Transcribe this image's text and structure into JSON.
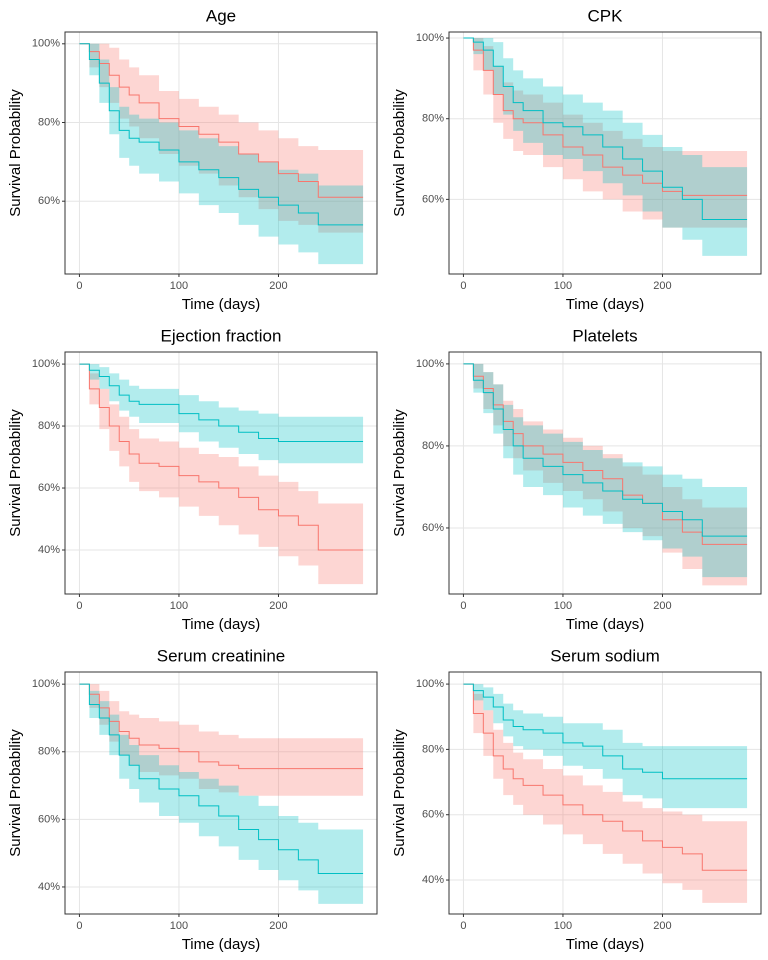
{
  "chart_data": [
    {
      "type": "line",
      "step": true,
      "title": "Age",
      "x_label": "Time (days)",
      "y_label": "Survival Probability",
      "x": [
        0,
        10,
        20,
        30,
        40,
        50,
        60,
        80,
        100,
        120,
        140,
        160,
        180,
        200,
        220,
        240,
        260,
        285
      ],
      "xlim": [
        -14.5,
        299
      ],
      "xticks": [
        0,
        100,
        200
      ],
      "ylim": [
        41.5,
        103
      ],
      "yticks": [
        {
          "value": 60,
          "label": "60%"
        },
        {
          "value": 80,
          "label": "80%"
        },
        {
          "value": 100,
          "label": "100%"
        }
      ],
      "grid": true,
      "series": [
        {
          "color": "#F8766D",
          "values": [
            100,
            98,
            95,
            92,
            89,
            87,
            85,
            81,
            79,
            77,
            75,
            72,
            70,
            67,
            65,
            61,
            61,
            61
          ],
          "lower": [
            100,
            94,
            89,
            85,
            81,
            79,
            76,
            72,
            69,
            67,
            64,
            61,
            58,
            55,
            54,
            52,
            52,
            52
          ],
          "upper": [
            100,
            100,
            100,
            99,
            96,
            94,
            92,
            88,
            86,
            84,
            82,
            80,
            78,
            76,
            74,
            73,
            73,
            73
          ]
        },
        {
          "color": "#00BFC4",
          "values": [
            100,
            96,
            90,
            83,
            78,
            76,
            75,
            73,
            70,
            68,
            66,
            63,
            61,
            59,
            57,
            54,
            54,
            54
          ],
          "lower": [
            100,
            92,
            85,
            77,
            71,
            69,
            67,
            65,
            62,
            59,
            57,
            54,
            51,
            49,
            47,
            44,
            44,
            44
          ],
          "upper": [
            100,
            100,
            96,
            89,
            84,
            82,
            81,
            80,
            78,
            76,
            74,
            72,
            70,
            68,
            67,
            64,
            64,
            64
          ]
        }
      ]
    },
    {
      "type": "line",
      "step": true,
      "title": "CPK",
      "x_label": "Time (days)",
      "y_label": "Survival Probability",
      "x": [
        0,
        10,
        20,
        30,
        40,
        50,
        60,
        80,
        100,
        120,
        140,
        160,
        180,
        200,
        220,
        240,
        260,
        285
      ],
      "xlim": [
        -14.5,
        299
      ],
      "xticks": [
        0,
        100,
        200
      ],
      "ylim": [
        41.5,
        101.5
      ],
      "yticks": [
        {
          "value": 60,
          "label": "60%"
        },
        {
          "value": 80,
          "label": "80%"
        },
        {
          "value": 100,
          "label": "100%"
        }
      ],
      "grid": true,
      "series": [
        {
          "color": "#F8766D",
          "values": [
            100,
            97,
            92,
            86,
            82,
            80,
            79,
            76,
            73,
            71,
            68,
            66,
            64,
            62,
            61,
            61,
            61,
            61
          ],
          "lower": [
            100,
            92,
            86,
            79,
            75,
            72,
            71,
            68,
            65,
            62,
            60,
            57,
            55,
            53,
            53,
            53,
            53,
            53
          ],
          "upper": [
            100,
            100,
            98,
            93,
            89,
            87,
            86,
            84,
            81,
            79,
            77,
            75,
            73,
            72,
            72,
            72,
            72,
            72
          ]
        },
        {
          "color": "#00BFC4",
          "values": [
            100,
            99,
            97,
            93,
            88,
            84,
            82,
            79,
            78,
            76,
            73,
            70,
            67,
            63,
            60,
            55,
            55,
            55
          ],
          "lower": [
            100,
            96,
            92,
            86,
            81,
            77,
            74,
            71,
            70,
            67,
            64,
            61,
            57,
            53,
            50,
            46,
            46,
            46
          ],
          "upper": [
            100,
            100,
            100,
            99,
            95,
            92,
            90,
            88,
            86,
            84,
            82,
            79,
            76,
            73,
            71,
            68,
            68,
            68
          ]
        }
      ]
    },
    {
      "type": "line",
      "step": true,
      "title": "Ejection fraction",
      "x_label": "Time (days)",
      "y_label": "Survival Probability",
      "x": [
        0,
        10,
        20,
        30,
        40,
        50,
        60,
        80,
        100,
        120,
        140,
        160,
        180,
        200,
        220,
        240,
        260,
        285
      ],
      "xlim": [
        -14.5,
        299
      ],
      "xticks": [
        0,
        100,
        200
      ],
      "ylim": [
        25.8,
        103.9
      ],
      "yticks": [
        {
          "value": 40,
          "label": "40%"
        },
        {
          "value": 60,
          "label": "60%"
        },
        {
          "value": 80,
          "label": "80%"
        },
        {
          "value": 100,
          "label": "100%"
        }
      ],
      "grid": true,
      "series": [
        {
          "color": "#F8766D",
          "values": [
            100,
            92,
            86,
            80,
            75,
            71,
            68,
            67,
            64,
            62,
            60,
            57,
            53,
            51,
            48,
            40,
            40,
            40
          ],
          "lower": [
            100,
            87,
            79,
            72,
            67,
            62,
            59,
            57,
            54,
            51,
            48,
            45,
            41,
            38,
            35,
            29,
            29,
            29
          ],
          "upper": [
            100,
            97,
            92,
            87,
            83,
            79,
            76,
            75,
            73,
            71,
            70,
            67,
            64,
            62,
            59,
            55,
            55,
            55
          ]
        },
        {
          "color": "#00BFC4",
          "values": [
            100,
            98,
            96,
            93,
            90,
            88,
            87,
            87,
            84,
            82,
            80,
            78,
            76,
            75,
            75,
            75,
            75,
            75
          ],
          "lower": [
            100,
            95,
            92,
            88,
            85,
            83,
            81,
            81,
            78,
            75,
            73,
            71,
            69,
            68,
            68,
            68,
            68,
            68
          ],
          "upper": [
            100,
            100,
            99,
            97,
            95,
            93,
            92,
            92,
            90,
            88,
            86,
            85,
            84,
            83,
            83,
            83,
            83,
            83
          ]
        }
      ]
    },
    {
      "type": "line",
      "step": true,
      "title": "Platelets",
      "x_label": "Time (days)",
      "y_label": "Survival Probability",
      "x": [
        0,
        10,
        20,
        30,
        40,
        50,
        60,
        80,
        100,
        120,
        140,
        160,
        180,
        200,
        220,
        240,
        260,
        285
      ],
      "xlim": [
        -14.5,
        299
      ],
      "xticks": [
        0,
        100,
        200
      ],
      "ylim": [
        43.9,
        102.9
      ],
      "yticks": [
        {
          "value": 60,
          "label": "60%"
        },
        {
          "value": 80,
          "label": "80%"
        },
        {
          "value": 100,
          "label": "100%"
        }
      ],
      "grid": true,
      "series": [
        {
          "color": "#F8766D",
          "values": [
            100,
            97,
            94,
            90,
            86,
            83,
            80,
            78,
            76,
            74,
            72,
            68,
            66,
            62,
            59,
            56,
            56,
            56
          ],
          "lower": [
            100,
            94,
            89,
            85,
            80,
            77,
            74,
            71,
            69,
            67,
            64,
            60,
            58,
            54,
            50,
            46,
            46,
            46
          ],
          "upper": [
            100,
            100,
            98,
            95,
            91,
            89,
            86,
            84,
            82,
            80,
            78,
            75,
            73,
            70,
            67,
            65,
            65,
            65
          ]
        },
        {
          "color": "#00BFC4",
          "values": [
            100,
            96,
            93,
            89,
            84,
            80,
            77,
            75,
            73,
            71,
            69,
            67,
            66,
            64,
            62,
            58,
            58,
            58
          ],
          "lower": [
            100,
            93,
            88,
            83,
            77,
            73,
            70,
            68,
            65,
            63,
            61,
            59,
            57,
            55,
            53,
            48,
            48,
            48
          ],
          "upper": [
            100,
            100,
            98,
            95,
            90,
            87,
            85,
            83,
            81,
            79,
            77,
            76,
            75,
            73,
            72,
            70,
            70,
            70
          ]
        }
      ]
    },
    {
      "type": "line",
      "step": true,
      "title": "Serum creatinine",
      "x_label": "Time (days)",
      "y_label": "Survival Probability",
      "x": [
        0,
        10,
        20,
        30,
        40,
        50,
        60,
        80,
        100,
        120,
        140,
        160,
        180,
        200,
        220,
        240,
        260,
        285
      ],
      "xlim": [
        -14.5,
        299
      ],
      "xticks": [
        0,
        100,
        200
      ],
      "ylim": [
        32,
        103.6
      ],
      "yticks": [
        {
          "value": 40,
          "label": "40%"
        },
        {
          "value": 60,
          "label": "60%"
        },
        {
          "value": 80,
          "label": "80%"
        },
        {
          "value": 100,
          "label": "100%"
        }
      ],
      "grid": true,
      "series": [
        {
          "color": "#F8766D",
          "values": [
            100,
            97,
            93,
            89,
            86,
            84,
            82,
            81,
            80,
            77,
            76,
            75,
            75,
            75,
            75,
            75,
            75,
            75
          ],
          "lower": [
            100,
            93,
            88,
            83,
            79,
            76,
            74,
            73,
            72,
            69,
            68,
            67,
            67,
            67,
            67,
            67,
            67,
            67
          ],
          "upper": [
            100,
            100,
            98,
            95,
            92,
            91,
            90,
            89,
            88,
            86,
            85,
            84,
            84,
            84,
            84,
            84,
            84,
            84
          ]
        },
        {
          "color": "#00BFC4",
          "values": [
            100,
            94,
            90,
            85,
            79,
            76,
            72,
            69,
            67,
            64,
            61,
            57,
            54,
            51,
            48,
            44,
            44,
            44
          ],
          "lower": [
            100,
            90,
            85,
            79,
            72,
            69,
            65,
            61,
            59,
            55,
            52,
            48,
            45,
            42,
            39,
            35,
            35,
            35
          ],
          "upper": [
            100,
            98,
            95,
            91,
            85,
            82,
            79,
            76,
            74,
            72,
            70,
            67,
            64,
            61,
            59,
            57,
            57,
            57
          ]
        }
      ]
    },
    {
      "type": "line",
      "step": true,
      "title": "Serum sodium",
      "x_label": "Time (days)",
      "y_label": "Survival Probability",
      "x": [
        0,
        10,
        20,
        30,
        40,
        50,
        60,
        80,
        100,
        120,
        140,
        160,
        180,
        200,
        220,
        240,
        260,
        285
      ],
      "xlim": [
        -14.5,
        299
      ],
      "xticks": [
        0,
        100,
        200
      ],
      "ylim": [
        29.6,
        103.7
      ],
      "yticks": [
        {
          "value": 40,
          "label": "40%"
        },
        {
          "value": 60,
          "label": "60%"
        },
        {
          "value": 80,
          "label": "80%"
        },
        {
          "value": 100,
          "label": "100%"
        }
      ],
      "grid": true,
      "series": [
        {
          "color": "#F8766D",
          "values": [
            100,
            91,
            85,
            78,
            74,
            71,
            69,
            66,
            63,
            60,
            58,
            55,
            52,
            50,
            48,
            43,
            43,
            43
          ],
          "lower": [
            100,
            85,
            78,
            71,
            66,
            63,
            60,
            57,
            54,
            51,
            48,
            45,
            42,
            39,
            37,
            33,
            33,
            33
          ],
          "upper": [
            100,
            97,
            92,
            86,
            82,
            79,
            77,
            74,
            72,
            69,
            67,
            64,
            62,
            61,
            60,
            58,
            58,
            58
          ]
        },
        {
          "color": "#00BFC4",
          "values": [
            100,
            98,
            96,
            93,
            89,
            87,
            86,
            85,
            82,
            81,
            78,
            74,
            73,
            71,
            71,
            71,
            71,
            71
          ],
          "lower": [
            100,
            95,
            92,
            88,
            84,
            81,
            80,
            78,
            75,
            74,
            71,
            66,
            65,
            62,
            62,
            62,
            62,
            62
          ],
          "upper": [
            100,
            100,
            99,
            97,
            94,
            92,
            91,
            90,
            88,
            88,
            86,
            82,
            81,
            81,
            81,
            81,
            81,
            81
          ]
        }
      ]
    }
  ]
}
